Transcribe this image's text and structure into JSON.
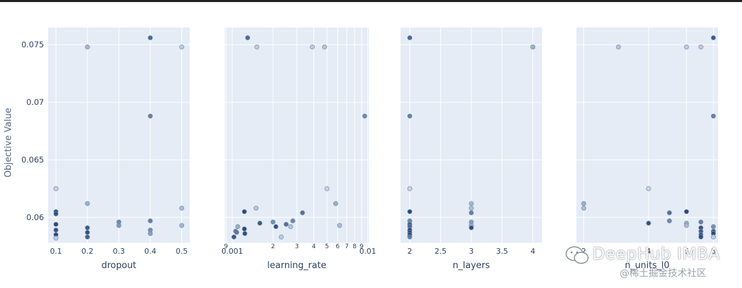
{
  "chart_data": {
    "type": "scatter",
    "ylabel": "Objective Value",
    "ylim": [
      0.0578,
      0.0765
    ],
    "yticks": [
      0.06,
      0.065,
      0.07,
      0.075
    ],
    "ytick_labels": [
      "0.06",
      "0.065",
      "0.07",
      "0.075"
    ],
    "grid": true,
    "colors": {
      "plot_bg": "#e5ecf6",
      "grid": "#ffffff",
      "marker_dark": "#08306b",
      "marker_light": "#c6dbef",
      "text": "#2a3f5f"
    },
    "panels": [
      {
        "xlabel": "dropout",
        "scale": "linear",
        "xlim": [
          0.075,
          0.525
        ],
        "xticks": [
          0.1,
          0.2,
          0.3,
          0.4,
          0.5
        ],
        "xtick_labels": [
          "0.1",
          "0.2",
          "0.3",
          "0.4",
          "0.5"
        ],
        "points": [
          {
            "x": 0.1,
            "y": 0.0625,
            "c": 0.05
          },
          {
            "x": 0.1,
            "y": 0.0605,
            "c": 0.9
          },
          {
            "x": 0.1,
            "y": 0.0603,
            "c": 0.85
          },
          {
            "x": 0.1,
            "y": 0.0594,
            "c": 0.95
          },
          {
            "x": 0.1,
            "y": 0.0589,
            "c": 0.9
          },
          {
            "x": 0.1,
            "y": 0.0585,
            "c": 0.95
          },
          {
            "x": 0.1,
            "y": 0.0582,
            "c": 0.1
          },
          {
            "x": 0.2,
            "y": 0.0748,
            "c": 0.25
          },
          {
            "x": 0.2,
            "y": 0.0612,
            "c": 0.3
          },
          {
            "x": 0.2,
            "y": 0.0591,
            "c": 0.85
          },
          {
            "x": 0.2,
            "y": 0.0587,
            "c": 0.9
          },
          {
            "x": 0.2,
            "y": 0.0583,
            "c": 0.8
          },
          {
            "x": 0.3,
            "y": 0.0596,
            "c": 0.55
          },
          {
            "x": 0.3,
            "y": 0.0593,
            "c": 0.45
          },
          {
            "x": 0.4,
            "y": 0.0756,
            "c": 0.75
          },
          {
            "x": 0.4,
            "y": 0.0688,
            "c": 0.6
          },
          {
            "x": 0.4,
            "y": 0.0597,
            "c": 0.6
          },
          {
            "x": 0.4,
            "y": 0.0589,
            "c": 0.5
          },
          {
            "x": 0.4,
            "y": 0.0586,
            "c": 0.4
          },
          {
            "x": 0.5,
            "y": 0.0748,
            "c": 0.1
          },
          {
            "x": 0.5,
            "y": 0.0608,
            "c": 0.2
          },
          {
            "x": 0.5,
            "y": 0.0593,
            "c": 0.25
          }
        ]
      },
      {
        "xlabel": "learning_rate",
        "scale": "log",
        "xlim": [
          0.00088,
          0.0102
        ],
        "xticks": [
          0.0009,
          0.001,
          0.002,
          0.003,
          0.004,
          0.005,
          0.006,
          0.007,
          0.008,
          0.009,
          0.01
        ],
        "xtick_labels": [
          "9",
          "0.001",
          "2",
          "3",
          "4",
          "5",
          "6",
          "7",
          "8",
          "9",
          "0.01"
        ],
        "points": [
          {
            "x": 0.00103,
            "y": 0.0583,
            "c": 0.85
          },
          {
            "x": 0.00106,
            "y": 0.0588,
            "c": 0.7
          },
          {
            "x": 0.00108,
            "y": 0.0587,
            "c": 0.6
          },
          {
            "x": 0.0011,
            "y": 0.0592,
            "c": 0.3
          },
          {
            "x": 0.00123,
            "y": 0.0605,
            "c": 0.95
          },
          {
            "x": 0.00123,
            "y": 0.059,
            "c": 0.95
          },
          {
            "x": 0.00124,
            "y": 0.0586,
            "c": 0.9
          },
          {
            "x": 0.0013,
            "y": 0.0756,
            "c": 0.75
          },
          {
            "x": 0.0015,
            "y": 0.0608,
            "c": 0.15
          },
          {
            "x": 0.00152,
            "y": 0.0748,
            "c": 0.1
          },
          {
            "x": 0.0016,
            "y": 0.0595,
            "c": 0.85
          },
          {
            "x": 0.002,
            "y": 0.0596,
            "c": 0.5
          },
          {
            "x": 0.0021,
            "y": 0.0592,
            "c": 0.9
          },
          {
            "x": 0.0023,
            "y": 0.0583,
            "c": 0.1
          },
          {
            "x": 0.0025,
            "y": 0.0594,
            "c": 0.7
          },
          {
            "x": 0.0027,
            "y": 0.0592,
            "c": 0.15
          },
          {
            "x": 0.0028,
            "y": 0.0597,
            "c": 0.55
          },
          {
            "x": 0.0033,
            "y": 0.0604,
            "c": 0.7
          },
          {
            "x": 0.0039,
            "y": 0.0748,
            "c": 0.1
          },
          {
            "x": 0.0048,
            "y": 0.0748,
            "c": 0.15
          },
          {
            "x": 0.005,
            "y": 0.0625,
            "c": 0.05
          },
          {
            "x": 0.0058,
            "y": 0.0612,
            "c": 0.3
          },
          {
            "x": 0.0062,
            "y": 0.0593,
            "c": 0.2
          },
          {
            "x": 0.0095,
            "y": 0.0688,
            "c": 0.55
          }
        ]
      },
      {
        "xlabel": "n_layers",
        "scale": "linear",
        "xlim": [
          1.85,
          4.15
        ],
        "xticks": [
          2,
          2.5,
          3,
          3.5,
          4
        ],
        "xtick_labels": [
          "2",
          "2.5",
          "3",
          "3.5",
          "4"
        ],
        "points": [
          {
            "x": 2,
            "y": 0.0756,
            "c": 0.75
          },
          {
            "x": 2,
            "y": 0.0688,
            "c": 0.6
          },
          {
            "x": 2,
            "y": 0.0625,
            "c": 0.05
          },
          {
            "x": 2,
            "y": 0.0605,
            "c": 0.95
          },
          {
            "x": 2,
            "y": 0.0597,
            "c": 0.55
          },
          {
            "x": 2,
            "y": 0.0594,
            "c": 0.8
          },
          {
            "x": 2,
            "y": 0.0592,
            "c": 0.7
          },
          {
            "x": 2,
            "y": 0.0589,
            "c": 0.95
          },
          {
            "x": 2,
            "y": 0.0587,
            "c": 0.85
          },
          {
            "x": 2,
            "y": 0.0585,
            "c": 0.9
          },
          {
            "x": 2,
            "y": 0.0583,
            "c": 0.6
          },
          {
            "x": 3,
            "y": 0.0612,
            "c": 0.25
          },
          {
            "x": 3,
            "y": 0.0608,
            "c": 0.2
          },
          {
            "x": 3,
            "y": 0.0604,
            "c": 0.6
          },
          {
            "x": 3,
            "y": 0.0596,
            "c": 0.4
          },
          {
            "x": 3,
            "y": 0.0593,
            "c": 0.3
          },
          {
            "x": 3,
            "y": 0.0591,
            "c": 0.9
          },
          {
            "x": 4,
            "y": 0.0748,
            "c": 0.15
          },
          {
            "x": 4,
            "y": 0.0748,
            "c": 0.25
          }
        ]
      },
      {
        "xlabel": "n_units_l0",
        "scale": "log",
        "xlim": [
          1.85,
          8.4
        ],
        "xticks": [
          2,
          4,
          6,
          8
        ],
        "xtick_labels": [
          "2",
          "4",
          "6",
          "8"
        ],
        "points": [
          {
            "x": 2,
            "y": 0.0612,
            "c": 0.3
          },
          {
            "x": 2,
            "y": 0.0608,
            "c": 0.2
          },
          {
            "x": 2.9,
            "y": 0.0748,
            "c": 0.15
          },
          {
            "x": 4,
            "y": 0.0625,
            "c": 0.05
          },
          {
            "x": 4,
            "y": 0.0595,
            "c": 0.9
          },
          {
            "x": 5,
            "y": 0.0604,
            "c": 0.7
          },
          {
            "x": 5,
            "y": 0.0597,
            "c": 0.55
          },
          {
            "x": 6,
            "y": 0.0748,
            "c": 0.1
          },
          {
            "x": 6,
            "y": 0.0605,
            "c": 0.95
          },
          {
            "x": 6,
            "y": 0.0595,
            "c": 0.3
          },
          {
            "x": 6,
            "y": 0.0593,
            "c": 0.2
          },
          {
            "x": 7,
            "y": 0.0748,
            "c": 0.1
          },
          {
            "x": 7,
            "y": 0.0596,
            "c": 0.6
          },
          {
            "x": 7,
            "y": 0.0591,
            "c": 0.9
          },
          {
            "x": 7,
            "y": 0.0588,
            "c": 0.8
          },
          {
            "x": 7,
            "y": 0.0585,
            "c": 0.85
          },
          {
            "x": 7,
            "y": 0.0583,
            "c": 0.9
          },
          {
            "x": 8,
            "y": 0.0756,
            "c": 0.85
          },
          {
            "x": 8,
            "y": 0.0688,
            "c": 0.6
          },
          {
            "x": 8,
            "y": 0.0592,
            "c": 0.5
          },
          {
            "x": 8,
            "y": 0.0588,
            "c": 0.8
          },
          {
            "x": 8,
            "y": 0.0586,
            "c": 0.9
          },
          {
            "x": 8,
            "y": 0.0583,
            "c": 0.1
          }
        ]
      }
    ]
  },
  "watermark": {
    "main": "DeepHub IMBA",
    "sub": "@稀土掘金技术社区",
    "icon": "wechat-icon"
  }
}
